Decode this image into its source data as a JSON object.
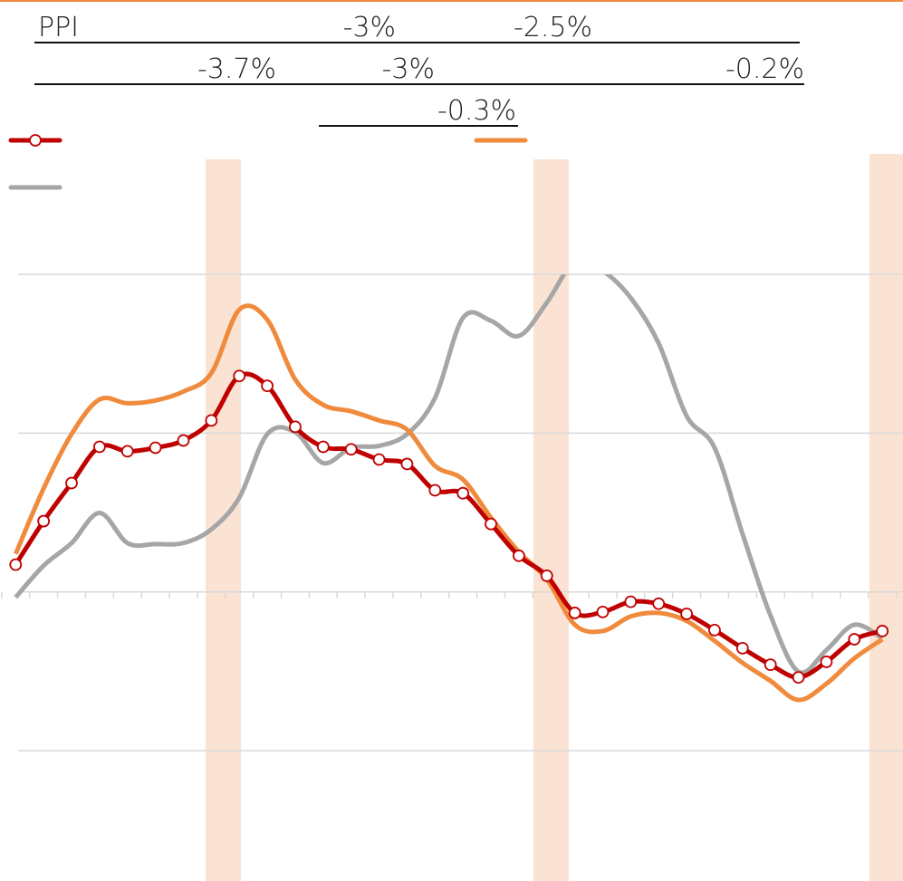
{
  "chart_data": {
    "type": "line",
    "annotations": [
      "PPI",
      "-3%",
      "-2.5%",
      "-3.7%",
      "-3%",
      "-0.2%",
      "-0.3%"
    ],
    "x": [
      0,
      1,
      2,
      3,
      4,
      5,
      6,
      7,
      8,
      9,
      10,
      11,
      12,
      13,
      14,
      15,
      16,
      17,
      18,
      19,
      20,
      21,
      22,
      23,
      24,
      25,
      26,
      27,
      28,
      29,
      30,
      31
    ],
    "series": [
      {
        "color": "#c00000",
        "markers": true,
        "values": [
          0.86,
          2.23,
          3.43,
          4.57,
          4.43,
          4.54,
          4.77,
          5.4,
          6.8,
          6.49,
          5.2,
          4.57,
          4.49,
          4.17,
          4.03,
          3.2,
          3.11,
          2.14,
          1.14,
          0.51,
          -0.66,
          -0.63,
          -0.31,
          -0.37,
          -0.69,
          -1.2,
          -1.77,
          -2.29,
          -2.69,
          -2.2,
          -1.49,
          -1.23
        ]
      },
      {
        "color": "#f08a3c",
        "markers": false,
        "values": [
          1.2,
          3.26,
          4.97,
          6.06,
          5.94,
          6.03,
          6.31,
          6.89,
          8.89,
          8.57,
          6.69,
          5.89,
          5.69,
          5.4,
          5.11,
          3.97,
          3.54,
          2.34,
          1.26,
          0.4,
          -1.03,
          -1.23,
          -0.77,
          -0.66,
          -0.91,
          -1.54,
          -2.23,
          -2.8,
          -3.4,
          -2.89,
          -2.09,
          -1.49
        ]
      },
      {
        "color": "#a6a6a6",
        "markers": false,
        "values": [
          -0.17,
          0.83,
          1.54,
          2.49,
          1.54,
          1.51,
          1.54,
          1.97,
          2.97,
          4.97,
          5.03,
          4.06,
          4.54,
          4.6,
          4.97,
          6.11,
          8.63,
          8.54,
          8.06,
          9.11,
          10.4,
          10.11,
          9.26,
          7.83,
          5.54,
          4.54,
          1.83,
          -0.74,
          -2.51,
          -1.83,
          -1.03,
          -1.46
        ]
      }
    ],
    "xlim": [
      -0.56,
      31.74
    ],
    "xticks": [
      -0.5,
      0.5,
      1.5,
      2.5,
      3.5,
      4.5,
      5.5,
      6.5,
      7.5,
      8.5,
      9.5,
      10.5,
      11.5,
      12.5,
      13.5,
      14.5,
      15.5,
      16.5,
      17.5,
      18.5,
      19.5,
      20.5,
      21.5,
      22.5,
      23.5,
      24.5,
      25.5,
      26.5,
      27.5,
      28.5,
      29.5,
      30.5,
      31.5
    ],
    "ylim": [
      -9.1,
      10
    ],
    "yticks": [
      -5,
      0,
      5,
      10
    ],
    "grid": true
  }
}
